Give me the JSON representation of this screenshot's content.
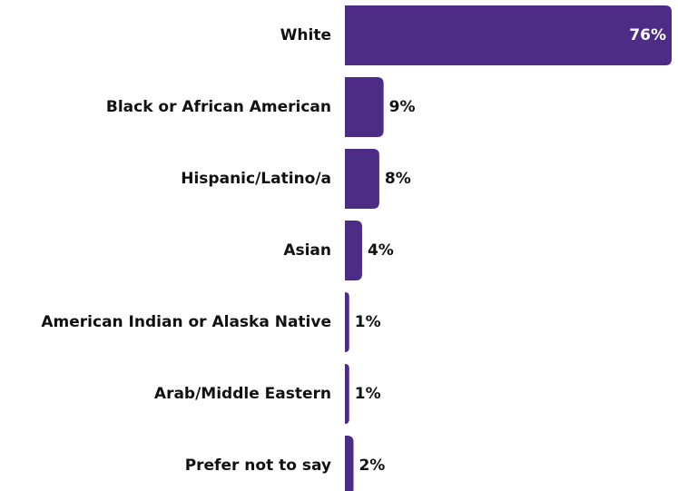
{
  "chart_data": {
    "type": "bar",
    "orientation": "horizontal",
    "categories": [
      "White",
      "Black or African American",
      "Hispanic/Latino/a",
      "Asian",
      "American Indian or Alaska Native",
      "Arab/Middle Eastern",
      "Prefer not to say"
    ],
    "values": [
      76,
      9,
      8,
      4,
      1,
      1,
      2
    ],
    "value_labels": [
      "76%",
      "9%",
      "8%",
      "4%",
      "1%",
      "1%",
      "2%"
    ],
    "color": "#4d2c85"
  }
}
